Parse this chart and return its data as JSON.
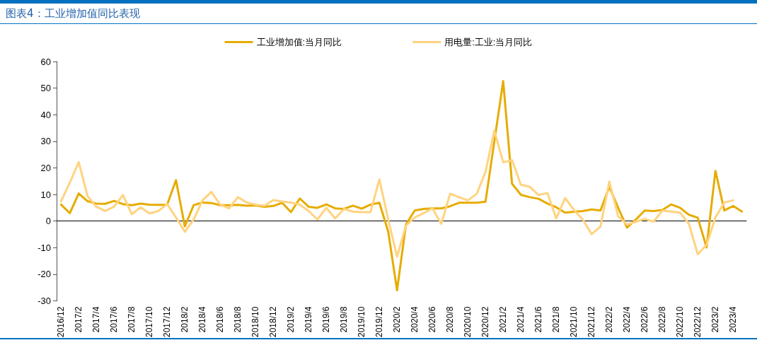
{
  "chart_data": {
    "type": "line",
    "title": "图表4：工业增加值同比表现",
    "categories": [
      "2016/12",
      null,
      "2017/2",
      null,
      "2017/4",
      null,
      "2017/6",
      null,
      "2017/8",
      null,
      "2017/10",
      null,
      "2017/12",
      null,
      "2018/2",
      null,
      "2018/4",
      null,
      "2018/6",
      null,
      "2018/8",
      null,
      "2018/10",
      null,
      "2018/12",
      null,
      "2019/2",
      null,
      "2019/4",
      null,
      "2019/6",
      null,
      "2019/8",
      null,
      "2019/10",
      null,
      "2019/12",
      null,
      "2020/2",
      null,
      "2020/4",
      null,
      "2020/6",
      null,
      "2020/8",
      null,
      "2020/10",
      null,
      "2020/12",
      null,
      "2021/2",
      null,
      "2021/4",
      null,
      "2021/6",
      null,
      "2021/8",
      null,
      "2021/10",
      null,
      "2021/12",
      null,
      "2022/2",
      null,
      "2022/4",
      null,
      "2022/6",
      null,
      "2022/8",
      null,
      "2022/10",
      null,
      "2022/12",
      null,
      "2023/2",
      null,
      "2023/4",
      null
    ],
    "series": [
      {
        "name": "工业增加值:当月同比",
        "color": "#e6ac00",
        "values": [
          6.2,
          3.0,
          10.4,
          7.5,
          6.6,
          6.5,
          7.6,
          6.4,
          6.0,
          6.6,
          6.2,
          6.1,
          6.2,
          15.4,
          -2.0,
          6.0,
          7.0,
          6.8,
          6.0,
          6.0,
          6.1,
          5.8,
          5.9,
          5.4,
          5.7,
          6.9,
          3.4,
          8.5,
          5.4,
          5.0,
          6.3,
          4.8,
          4.6,
          5.8,
          4.7,
          6.2,
          6.9,
          -4.0,
          -26.0,
          -1.3,
          4.0,
          4.6,
          4.8,
          4.8,
          5.6,
          6.9,
          6.9,
          6.9,
          7.3,
          30.0,
          52.6,
          14.1,
          9.9,
          9.0,
          8.4,
          6.6,
          5.2,
          3.2,
          3.5,
          3.8,
          4.4,
          4.0,
          12.9,
          5.0,
          -2.4,
          0.6,
          4.0,
          3.8,
          4.2,
          6.3,
          5.0,
          2.4,
          1.3,
          -9.9,
          18.9,
          4.0,
          5.7,
          3.6
        ]
      },
      {
        "name": "用电量:工业:当月同比",
        "color": "#ffd37f",
        "values": [
          7.4,
          14.5,
          22.2,
          9.4,
          5.4,
          3.8,
          5.4,
          9.8,
          2.6,
          5.2,
          2.9,
          3.8,
          6.4,
          1.4,
          -4.0,
          0.6,
          7.8,
          11.0,
          6.2,
          4.8,
          9.0,
          7.0,
          6.2,
          5.8,
          7.9,
          7.4,
          7.0,
          6.2,
          3.8,
          0.6,
          5.0,
          1.0,
          4.6,
          3.6,
          3.4,
          3.4,
          15.7,
          0.6,
          -13.3,
          -1.7,
          1.4,
          3.0,
          4.8,
          -1.0,
          10.3,
          9.0,
          7.8,
          10.2,
          18.5,
          34.0,
          22.1,
          22.9,
          13.7,
          12.9,
          9.8,
          10.6,
          1.0,
          8.7,
          4.2,
          0.6,
          -4.9,
          -2.1,
          14.9,
          1.8,
          -1.3,
          -0.2,
          0.8,
          -0.2,
          4.0,
          3.6,
          3.2,
          -1.0,
          -12.5,
          -8.9,
          1.4,
          7.0,
          7.8,
          null
        ]
      }
    ],
    "ylim": [
      -30,
      60
    ],
    "yticks": [
      -30,
      -20,
      -10,
      0,
      10,
      20,
      30,
      40,
      50,
      60
    ],
    "legend": "top",
    "marker": "none",
    "line_style": "solid"
  }
}
